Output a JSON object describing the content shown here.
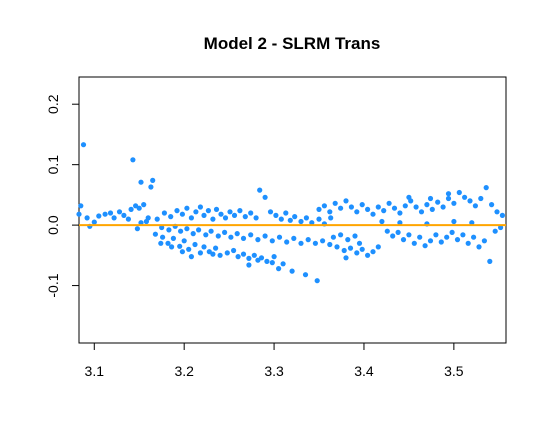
{
  "chart_data": {
    "type": "scatter",
    "title": "Model 2 - SLRM Trans",
    "xlabel": "",
    "ylabel": "",
    "xlim": [
      3.083,
      3.558
    ],
    "ylim": [
      -0.195,
      0.245
    ],
    "x_ticks": [
      {
        "value": 3.1,
        "label": "3.1"
      },
      {
        "value": 3.2,
        "label": "3.2"
      },
      {
        "value": 3.3,
        "label": "3.3"
      },
      {
        "value": 3.4,
        "label": "3.4"
      },
      {
        "value": 3.5,
        "label": "3.5"
      }
    ],
    "y_ticks": [
      {
        "value": -0.1,
        "label": "-0.1"
      },
      {
        "value": 0.0,
        "label": "0.0"
      },
      {
        "value": 0.1,
        "label": "0.1"
      },
      {
        "value": 0.2,
        "label": "0.2"
      }
    ],
    "grid": false,
    "point_color": "#1E90FF",
    "reference_line": {
      "y": 0.0,
      "color": "#FFA500"
    },
    "points": [
      [
        3.088,
        0.133
      ],
      [
        3.143,
        0.108
      ],
      [
        3.152,
        0.071
      ],
      [
        3.165,
        0.074
      ],
      [
        3.163,
        0.063
      ],
      [
        3.085,
        0.032
      ],
      [
        3.083,
        0.018
      ],
      [
        3.092,
        0.012
      ],
      [
        3.1,
        0.005
      ],
      [
        3.105,
        0.015
      ],
      [
        3.112,
        0.018
      ],
      [
        3.118,
        0.02
      ],
      [
        3.122,
        0.012
      ],
      [
        3.128,
        0.022
      ],
      [
        3.133,
        0.016
      ],
      [
        3.138,
        0.01
      ],
      [
        3.141,
        0.026
      ],
      [
        3.146,
        0.032
      ],
      [
        3.15,
        0.028
      ],
      [
        3.155,
        0.034
      ],
      [
        3.158,
        0.006
      ],
      [
        3.16,
        0.012
      ],
      [
        3.148,
        -0.006
      ],
      [
        3.152,
        0.004
      ],
      [
        3.095,
        -0.002
      ],
      [
        3.168,
        -0.015
      ],
      [
        3.176,
        -0.02
      ],
      [
        3.182,
        -0.03
      ],
      [
        3.188,
        -0.022
      ],
      [
        3.195,
        -0.035
      ],
      [
        3.2,
        -0.026
      ],
      [
        3.205,
        -0.04
      ],
      [
        3.212,
        -0.032
      ],
      [
        3.218,
        -0.046
      ],
      [
        3.222,
        -0.036
      ],
      [
        3.228,
        -0.044
      ],
      [
        3.235,
        -0.038
      ],
      [
        3.24,
        -0.05
      ],
      [
        3.248,
        -0.046
      ],
      [
        3.255,
        -0.042
      ],
      [
        3.26,
        -0.052
      ],
      [
        3.266,
        -0.048
      ],
      [
        3.272,
        -0.055
      ],
      [
        3.278,
        -0.05
      ],
      [
        3.282,
        -0.058
      ],
      [
        3.286,
        -0.054
      ],
      [
        3.292,
        -0.06
      ],
      [
        3.298,
        -0.062
      ],
      [
        3.305,
        -0.072
      ],
      [
        3.31,
        -0.064
      ],
      [
        3.32,
        -0.076
      ],
      [
        3.335,
        -0.082
      ],
      [
        3.348,
        -0.092
      ],
      [
        3.3,
        -0.052
      ],
      [
        3.272,
        -0.066
      ],
      [
        3.232,
        -0.048
      ],
      [
        3.208,
        -0.052
      ],
      [
        3.198,
        -0.044
      ],
      [
        3.186,
        -0.036
      ],
      [
        3.174,
        -0.03
      ],
      [
        3.17,
        0.01
      ],
      [
        3.178,
        0.02
      ],
      [
        3.185,
        0.014
      ],
      [
        3.192,
        0.024
      ],
      [
        3.198,
        0.018
      ],
      [
        3.203,
        0.028
      ],
      [
        3.208,
        0.012
      ],
      [
        3.213,
        0.022
      ],
      [
        3.218,
        0.03
      ],
      [
        3.222,
        0.016
      ],
      [
        3.227,
        0.024
      ],
      [
        3.232,
        0.01
      ],
      [
        3.236,
        0.026
      ],
      [
        3.241,
        0.018
      ],
      [
        3.246,
        0.012
      ],
      [
        3.251,
        0.022
      ],
      [
        3.256,
        0.016
      ],
      [
        3.262,
        0.024
      ],
      [
        3.268,
        0.014
      ],
      [
        3.274,
        0.02
      ],
      [
        3.28,
        0.012
      ],
      [
        3.284,
        0.058
      ],
      [
        3.29,
        0.046
      ],
      [
        3.296,
        0.022
      ],
      [
        3.302,
        0.016
      ],
      [
        3.308,
        0.01
      ],
      [
        3.313,
        0.02
      ],
      [
        3.318,
        0.008
      ],
      [
        3.323,
        0.014
      ],
      [
        3.33,
        0.006
      ],
      [
        3.336,
        0.012
      ],
      [
        3.342,
        0.004
      ],
      [
        3.35,
        0.01
      ],
      [
        3.356,
        0.002
      ],
      [
        3.363,
        0.012
      ],
      [
        3.175,
        -0.004
      ],
      [
        3.183,
        -0.008
      ],
      [
        3.19,
        -0.002
      ],
      [
        3.196,
        -0.01
      ],
      [
        3.203,
        -0.006
      ],
      [
        3.21,
        -0.014
      ],
      [
        3.216,
        -0.008
      ],
      [
        3.224,
        -0.016
      ],
      [
        3.23,
        -0.01
      ],
      [
        3.238,
        -0.018
      ],
      [
        3.245,
        -0.012
      ],
      [
        3.252,
        -0.02
      ],
      [
        3.259,
        -0.014
      ],
      [
        3.266,
        -0.022
      ],
      [
        3.274,
        -0.016
      ],
      [
        3.282,
        -0.024
      ],
      [
        3.29,
        -0.018
      ],
      [
        3.298,
        -0.026
      ],
      [
        3.306,
        -0.02
      ],
      [
        3.314,
        -0.028
      ],
      [
        3.322,
        -0.022
      ],
      [
        3.33,
        -0.03
      ],
      [
        3.338,
        -0.024
      ],
      [
        3.346,
        -0.03
      ],
      [
        3.354,
        -0.026
      ],
      [
        3.362,
        -0.032
      ],
      [
        3.37,
        -0.036
      ],
      [
        3.378,
        -0.042
      ],
      [
        3.385,
        -0.038
      ],
      [
        3.392,
        -0.046
      ],
      [
        3.398,
        -0.04
      ],
      [
        3.404,
        -0.05
      ],
      [
        3.41,
        -0.044
      ],
      [
        3.416,
        -0.036
      ],
      [
        3.38,
        -0.054
      ],
      [
        3.395,
        -0.03
      ],
      [
        3.366,
        -0.02
      ],
      [
        3.374,
        -0.016
      ],
      [
        3.382,
        -0.024
      ],
      [
        3.39,
        -0.018
      ],
      [
        3.35,
        0.026
      ],
      [
        3.356,
        0.032
      ],
      [
        3.362,
        0.022
      ],
      [
        3.368,
        0.036
      ],
      [
        3.374,
        0.028
      ],
      [
        3.38,
        0.04
      ],
      [
        3.386,
        0.03
      ],
      [
        3.392,
        0.022
      ],
      [
        3.398,
        0.034
      ],
      [
        3.404,
        0.026
      ],
      [
        3.41,
        0.018
      ],
      [
        3.416,
        0.03
      ],
      [
        3.422,
        0.024
      ],
      [
        3.428,
        0.036
      ],
      [
        3.434,
        0.028
      ],
      [
        3.44,
        0.02
      ],
      [
        3.446,
        0.032
      ],
      [
        3.452,
        0.04
      ],
      [
        3.458,
        0.03
      ],
      [
        3.464,
        0.022
      ],
      [
        3.47,
        0.034
      ],
      [
        3.476,
        0.026
      ],
      [
        3.482,
        0.038
      ],
      [
        3.488,
        0.03
      ],
      [
        3.494,
        0.044
      ],
      [
        3.5,
        0.036
      ],
      [
        3.506,
        0.054
      ],
      [
        3.512,
        0.046
      ],
      [
        3.518,
        0.04
      ],
      [
        3.524,
        0.032
      ],
      [
        3.53,
        0.044
      ],
      [
        3.536,
        0.062
      ],
      [
        3.542,
        0.034
      ],
      [
        3.548,
        0.022
      ],
      [
        3.554,
        0.016
      ],
      [
        3.426,
        -0.01
      ],
      [
        3.432,
        -0.018
      ],
      [
        3.438,
        -0.012
      ],
      [
        3.444,
        -0.024
      ],
      [
        3.45,
        -0.016
      ],
      [
        3.456,
        -0.03
      ],
      [
        3.462,
        -0.02
      ],
      [
        3.468,
        -0.034
      ],
      [
        3.474,
        -0.026
      ],
      [
        3.48,
        -0.016
      ],
      [
        3.486,
        -0.028
      ],
      [
        3.492,
        -0.02
      ],
      [
        3.498,
        -0.012
      ],
      [
        3.504,
        -0.024
      ],
      [
        3.51,
        -0.016
      ],
      [
        3.516,
        -0.03
      ],
      [
        3.522,
        -0.02
      ],
      [
        3.528,
        -0.036
      ],
      [
        3.534,
        -0.026
      ],
      [
        3.54,
        -0.06
      ],
      [
        3.546,
        -0.01
      ],
      [
        3.552,
        -0.004
      ],
      [
        3.42,
        0.006
      ],
      [
        3.44,
        0.004
      ],
      [
        3.47,
        0.002
      ],
      [
        3.5,
        0.006
      ],
      [
        3.52,
        0.004
      ],
      [
        3.45,
        0.046
      ],
      [
        3.474,
        0.044
      ],
      [
        3.494,
        0.052
      ]
    ]
  }
}
